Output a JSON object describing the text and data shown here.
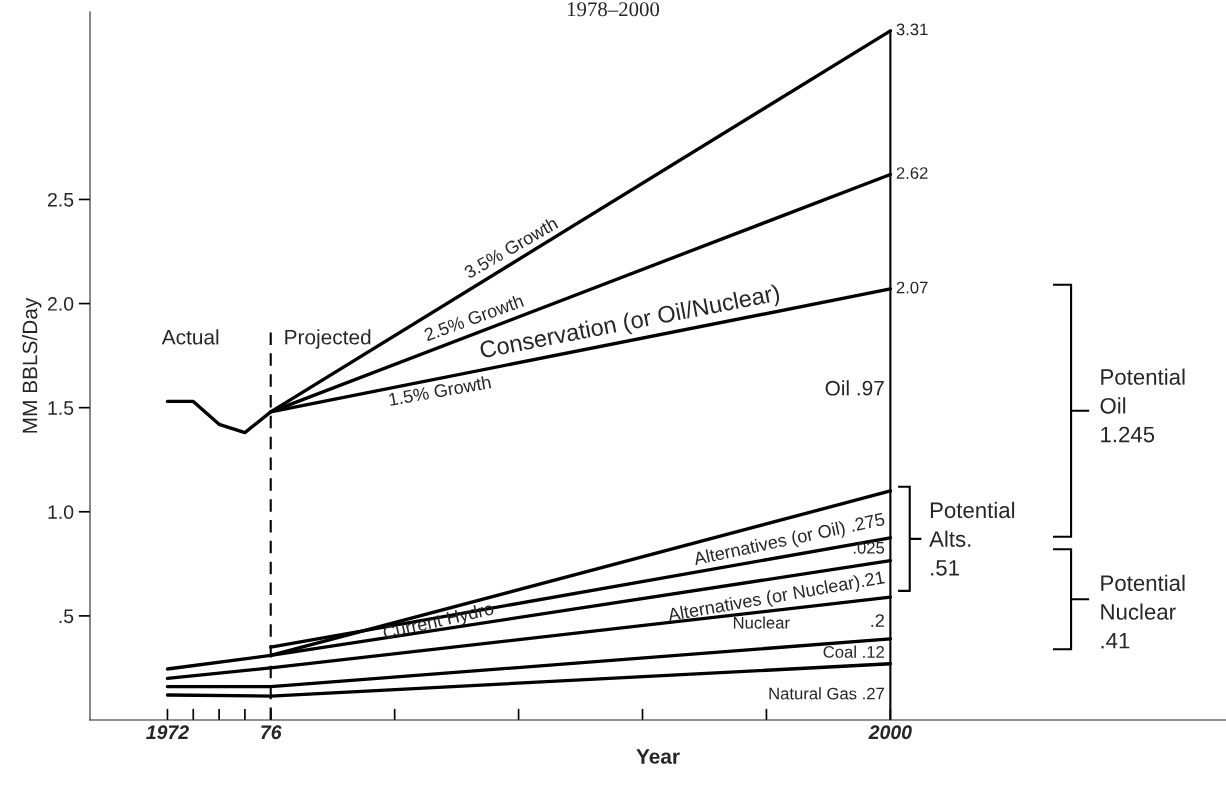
{
  "chart_data": {
    "type": "line",
    "title": "1978–2000",
    "xlabel": "Year",
    "ylabel": "MM BBLS/Day",
    "xlim": [
      1969,
      2013
    ],
    "ylim": [
      0,
      3.4
    ],
    "xticks": [
      {
        "value": 1972,
        "label": "1972"
      },
      {
        "value": 1973,
        "label": null
      },
      {
        "value": 1974,
        "label": null
      },
      {
        "value": 1975,
        "label": null
      },
      {
        "value": 1976,
        "label": "76"
      },
      {
        "value": 1980.8,
        "label": null
      },
      {
        "value": 1985.6,
        "label": null
      },
      {
        "value": 1990.4,
        "label": null
      },
      {
        "value": 1995.2,
        "label": null
      },
      {
        "value": 2000,
        "label": "2000"
      }
    ],
    "yticks": [
      {
        "value": 0.5,
        "label": ".5"
      },
      {
        "value": 1,
        "label": "1.0"
      },
      {
        "value": 1.5,
        "label": "1.5"
      },
      {
        "value": 2,
        "label": "2.0"
      },
      {
        "value": 2.5,
        "label": "2.5"
      }
    ],
    "marker": "none",
    "line_style": "solid",
    "grid": false,
    "legend": false,
    "series": [
      {
        "color": "#000000",
        "x": [
          1972,
          1973,
          1974,
          1975,
          1976,
          2000
        ],
        "values": [
          1.53,
          1.53,
          1.42,
          1.38,
          1.48,
          2.07
        ]
      },
      {
        "color": "#000000",
        "x": [
          1976,
          2000
        ],
        "values": [
          1.48,
          3.31
        ]
      },
      {
        "color": "#000000",
        "x": [
          1976,
          2000
        ],
        "values": [
          1.48,
          2.62
        ]
      },
      {
        "color": "#000000",
        "x": [
          1972,
          1976,
          2000
        ],
        "values": [
          0.245,
          0.31,
          1.1
        ]
      },
      {
        "color": "#000000",
        "x": [
          1976,
          2000
        ],
        "values": [
          0.35,
          0.875
        ]
      },
      {
        "color": "#000000",
        "x": [
          1976,
          2000
        ],
        "values": [
          0.31,
          0.765
        ]
      },
      {
        "color": "#000000",
        "x": [
          1972,
          1976,
          2000
        ],
        "values": [
          0.2,
          0.25,
          0.59
        ]
      },
      {
        "color": "#000000",
        "x": [
          1972,
          1976,
          2000
        ],
        "values": [
          0.16,
          0.16,
          0.39
        ]
      },
      {
        "color": "#000000",
        "x": [
          1972,
          1976,
          2000
        ],
        "values": [
          0.12,
          0.115,
          0.27
        ]
      }
    ],
    "ref_lines": [
      {
        "axis": "x",
        "value": 1976,
        "line_style": "dashed",
        "color": "#000000"
      },
      {
        "axis": "x",
        "value": 2000,
        "line_style": "solid",
        "color": "#000000"
      }
    ],
    "annotations": [
      {
        "text": "3.5% Growth",
        "x": 1985.5,
        "y": 2.2
      },
      {
        "text": "2.5% Growth",
        "x": 1984,
        "y": 1.86
      },
      {
        "text": "Conservation (or Oil/Nuclear)",
        "x": 1990,
        "y": 1.82
      },
      {
        "text": "1.5% Growth",
        "x": 1982.5,
        "y": 1.64
      },
      {
        "text": "3.31",
        "x": 2000,
        "y": 3.31
      },
      {
        "text": "2.62",
        "x": 2000,
        "y": 2.62
      },
      {
        "text": "2.07",
        "x": 2000,
        "y": 2.07
      },
      {
        "text": "Oil .97",
        "x": 2000,
        "y": 1.585
      },
      {
        "text": "Alternatives (or Oil) .275",
        "x": 2000,
        "y": 0.96
      },
      {
        "text": ".025",
        "x": 2000,
        "y": 0.82
      },
      {
        "text": "Current Hydro",
        "x": 1982.5,
        "y": 0.47
      },
      {
        "text": "Alternatives (or Nuclear).21",
        "x": 2000,
        "y": 0.68
      },
      {
        "text": ".2",
        "x": 2000,
        "y": 0.47
      },
      {
        "text": "Coal .12",
        "x": 2000,
        "y": 0.32
      },
      {
        "text": "Natural Gas .27",
        "x": 2000,
        "y": 0.12
      },
      "Nuclear",
      "Actual",
      "Projected",
      "Potential\nOil\n1.245",
      "Potential\nAlts.\n.51",
      "Potential\nNuclear\n.41"
    ]
  }
}
